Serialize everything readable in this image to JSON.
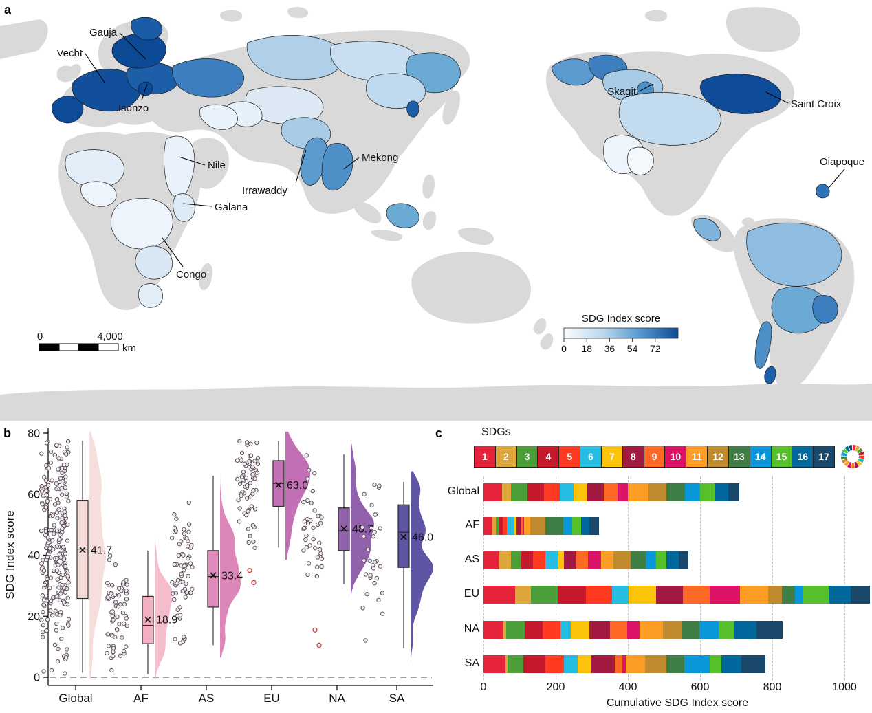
{
  "figure": {
    "panel_a_label": "a",
    "panel_b_label": "b",
    "panel_c_label": "c"
  },
  "map": {
    "description": "World map of transboundary river basins colored by SDG Index score",
    "land_color": "#D9D9D9",
    "ocean_color": "#FFFFFF",
    "basin_labels": [
      "Gauja",
      "Vecht",
      "Isonzo",
      "Nile",
      "Galana",
      "Congo",
      "Irrawaddy",
      "Mekong",
      "Skagit",
      "Saint Croix",
      "Oiapoque"
    ],
    "legend": {
      "title": "SDG Index score",
      "ticks": [
        "0",
        "18",
        "36",
        "54",
        "72"
      ],
      "gradient_start": "#FCFDFF",
      "gradient_end": "#0D4A96"
    },
    "scalebar": {
      "zero_label": "0",
      "distance_label": "4,000",
      "unit_label": "km"
    }
  },
  "chart_data": [
    {
      "type": "raincloud (scatter + boxplot + half-violin)",
      "ylabel": "SDG Index score",
      "ylim": [
        0,
        80
      ],
      "yticks": [
        0,
        20,
        40,
        60,
        80
      ],
      "categories": [
        "Global",
        "AF",
        "AS",
        "EU",
        "NA",
        "SA"
      ],
      "zero_line_dashed": true,
      "stats": [
        {
          "group": "Global",
          "mean": 41.7,
          "label": "41.7",
          "median": 42.0,
          "q1": 25.8,
          "q3": 58.0,
          "whisker_low": 1.5,
          "whisker_high": 77.5,
          "outliers": [],
          "n_points": 245,
          "box_color": "#F5DCD9",
          "violin_color": "#F6DEDC"
        },
        {
          "group": "AF",
          "mean": 18.9,
          "label": "18.9",
          "median": 17.0,
          "q1": 11.0,
          "q3": 26.5,
          "whisker_low": 1.0,
          "whisker_high": 41.5,
          "outliers": [],
          "n_points": 62,
          "box_color": "#F3B0C2",
          "violin_color": "#F5BCCB"
        },
        {
          "group": "AS",
          "mean": 33.4,
          "label": "33.4",
          "median": 33.0,
          "q1": 23.0,
          "q3": 41.5,
          "whisker_low": 10.5,
          "whisker_high": 66.0,
          "outliers": [],
          "n_points": 68,
          "box_color": "#DE8ABA",
          "violin_color": "#DD87B8"
        },
        {
          "group": "EU",
          "mean": 63.0,
          "label": "63.0",
          "median": 63.5,
          "q1": 56.0,
          "q3": 71.0,
          "whisker_low": 42.5,
          "whisker_high": 77.5,
          "outliers": [
            35.0,
            31.0
          ],
          "n_points": 68,
          "box_color": "#C26FB5",
          "violin_color": "#C26FB5"
        },
        {
          "group": "NA",
          "mean": 48.7,
          "label": "48.7",
          "median": 48.0,
          "q1": 41.5,
          "q3": 55.5,
          "whisker_low": 30.5,
          "whisker_high": 73.0,
          "outliers": [
            15.5,
            10.5
          ],
          "n_points": 40,
          "box_color": "#9161AC",
          "violin_color": "#9161AC"
        },
        {
          "group": "SA",
          "mean": 46.0,
          "label": "46.0",
          "median": 47.5,
          "q1": 36.0,
          "q3": 56.5,
          "whisker_low": 9.5,
          "whisker_high": 64.0,
          "outliers": [],
          "n_points": 32,
          "box_color": "#5F55A5",
          "violin_color": "#5F55A5"
        }
      ]
    },
    {
      "type": "bar",
      "orientation": "horizontal-stacked",
      "legend_title": "SDGs",
      "xlabel": "Cumulative SDG Index score",
      "xticks": [
        0,
        200,
        400,
        600,
        800,
        1000
      ],
      "xlim": [
        0,
        1075
      ],
      "categories": [
        "Global",
        "AF",
        "AS",
        "EU",
        "NA",
        "SA"
      ],
      "totals": [
        709,
        321,
        568,
        1071,
        828,
        782
      ],
      "series": [
        {
          "name": "1",
          "color": "#E5243B",
          "values": [
            51,
            22,
            44,
            87,
            55,
            60
          ]
        },
        {
          "name": "2",
          "color": "#DDA63A",
          "values": [
            25,
            13,
            32,
            45,
            7,
            7
          ]
        },
        {
          "name": "3",
          "color": "#4C9F38",
          "values": [
            46,
            8,
            29,
            74,
            52,
            44
          ]
        },
        {
          "name": "4",
          "color": "#C5192D",
          "values": [
            46,
            11,
            32,
            77,
            50,
            60
          ]
        },
        {
          "name": "5",
          "color": "#FF3A21",
          "values": [
            44,
            10,
            35,
            74,
            49,
            52
          ]
        },
        {
          "name": "6",
          "color": "#26BDE2",
          "values": [
            38,
            22,
            35,
            45,
            28,
            38
          ]
        },
        {
          "name": "7",
          "color": "#FCC30B",
          "values": [
            37,
            6,
            16,
            77,
            52,
            38
          ]
        },
        {
          "name": "8",
          "color": "#A21942",
          "values": [
            46,
            10,
            35,
            74,
            58,
            65
          ]
        },
        {
          "name": "9",
          "color": "#FD6925",
          "values": [
            38,
            6,
            32,
            74,
            47,
            20
          ]
        },
        {
          "name": "10",
          "color": "#DD1367",
          "values": [
            30,
            5,
            35,
            84,
            35,
            11
          ]
        },
        {
          "name": "11",
          "color": "#FD9D24",
          "values": [
            56,
            17,
            35,
            77,
            64,
            52
          ]
        },
        {
          "name": "12",
          "color": "#BF8B2E",
          "values": [
            50,
            41,
            48,
            39,
            54,
            60
          ]
        },
        {
          "name": "13",
          "color": "#3F7E44",
          "values": [
            52,
            51,
            41,
            35,
            48,
            49
          ]
        },
        {
          "name": "14",
          "color": "#0A97D9",
          "values": [
            41,
            24,
            29,
            24,
            52,
            70
          ]
        },
        {
          "name": "15",
          "color": "#56C02B",
          "values": [
            40,
            25,
            29,
            70,
            44,
            33
          ]
        },
        {
          "name": "16",
          "color": "#00689D",
          "values": [
            38,
            23,
            35,
            61,
            62,
            55
          ]
        },
        {
          "name": "17",
          "color": "#19486A",
          "values": [
            31,
            27,
            26,
            54,
            71,
            68
          ]
        }
      ]
    }
  ]
}
